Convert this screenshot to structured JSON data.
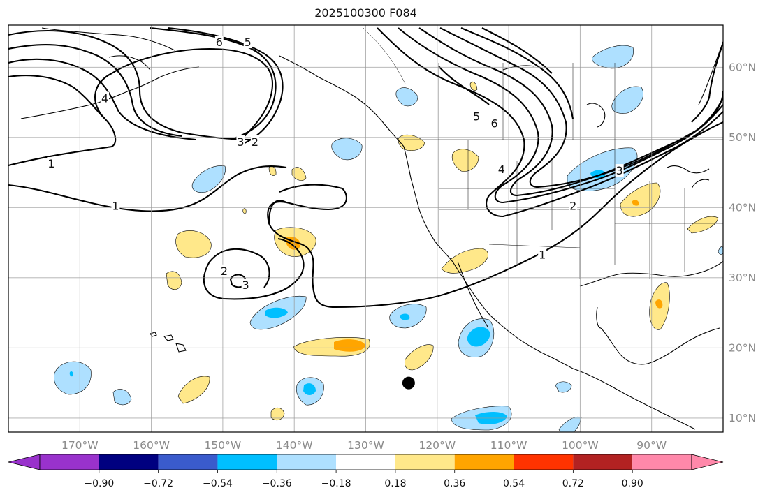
{
  "title": "2025100300 F084",
  "chart_data": {
    "type": "heatmap",
    "title": "2025100300 F084",
    "map_projection": "plate-carree",
    "lon_range": [
      -180,
      -80
    ],
    "lat_range": [
      8,
      66
    ],
    "lon_ticks": [
      {
        "value": -170,
        "label": "170°W"
      },
      {
        "value": -160,
        "label": "160°W"
      },
      {
        "value": -150,
        "label": "150°W"
      },
      {
        "value": -140,
        "label": "140°W"
      },
      {
        "value": -130,
        "label": "130°W"
      },
      {
        "value": -120,
        "label": "120°W"
      },
      {
        "value": -110,
        "label": "110°W"
      },
      {
        "value": -100,
        "label": "100°W"
      },
      {
        "value": -90,
        "label": "90°W"
      }
    ],
    "lat_ticks": [
      {
        "value": 60,
        "label": "60°N"
      },
      {
        "value": 50,
        "label": "50°N"
      },
      {
        "value": 40,
        "label": "40°N"
      },
      {
        "value": 30,
        "label": "30°N"
      },
      {
        "value": 20,
        "label": "20°N"
      },
      {
        "value": 10,
        "label": "10°N"
      }
    ],
    "grid": true,
    "colorbar": {
      "orientation": "horizontal",
      "extend": "both",
      "boundaries": [
        -0.9,
        -0.72,
        -0.54,
        -0.36,
        -0.18,
        0.18,
        0.36,
        0.54,
        0.72,
        0.9
      ],
      "tick_labels": [
        "−0.90",
        "−0.72",
        "−0.54",
        "−0.36",
        "−0.18",
        "0.18",
        "0.36",
        "0.54",
        "0.72",
        "0.90"
      ],
      "colors": [
        "#9932cc",
        "#000080",
        "#3a5bcc",
        "#00bfff",
        "#aee0ff",
        "#ffffff",
        "#ffe88a",
        "#ffa500",
        "#ff3300",
        "#b22222",
        "#ff88aa"
      ]
    },
    "contour_labels": [
      {
        "text": "6",
        "lon": -150.5,
        "lat": 63.5
      },
      {
        "text": "5",
        "lon": -146.5,
        "lat": 63.5
      },
      {
        "text": "4",
        "lon": -166.5,
        "lat": 55.5
      },
      {
        "text": "3",
        "lon": -147.5,
        "lat": 49.3
      },
      {
        "text": "2",
        "lon": -145.5,
        "lat": 49.3
      },
      {
        "text": "1",
        "lon": -174.0,
        "lat": 46.2
      },
      {
        "text": "1",
        "lon": -165.0,
        "lat": 40.2
      },
      {
        "text": "2",
        "lon": -149.8,
        "lat": 30.9
      },
      {
        "text": "3",
        "lon": -146.8,
        "lat": 28.9
      },
      {
        "text": "5",
        "lon": -114.5,
        "lat": 52.9
      },
      {
        "text": "6",
        "lon": -112.0,
        "lat": 51.9
      },
      {
        "text": "4",
        "lon": -111.0,
        "lat": 45.4
      },
      {
        "text": "3",
        "lon": -94.5,
        "lat": 45.2
      },
      {
        "text": "2",
        "lon": -101.0,
        "lat": 40.2
      },
      {
        "text": "1",
        "lon": -105.3,
        "lat": 33.2
      }
    ],
    "marker": {
      "lon": -124.0,
      "lat": 15.0
    }
  }
}
